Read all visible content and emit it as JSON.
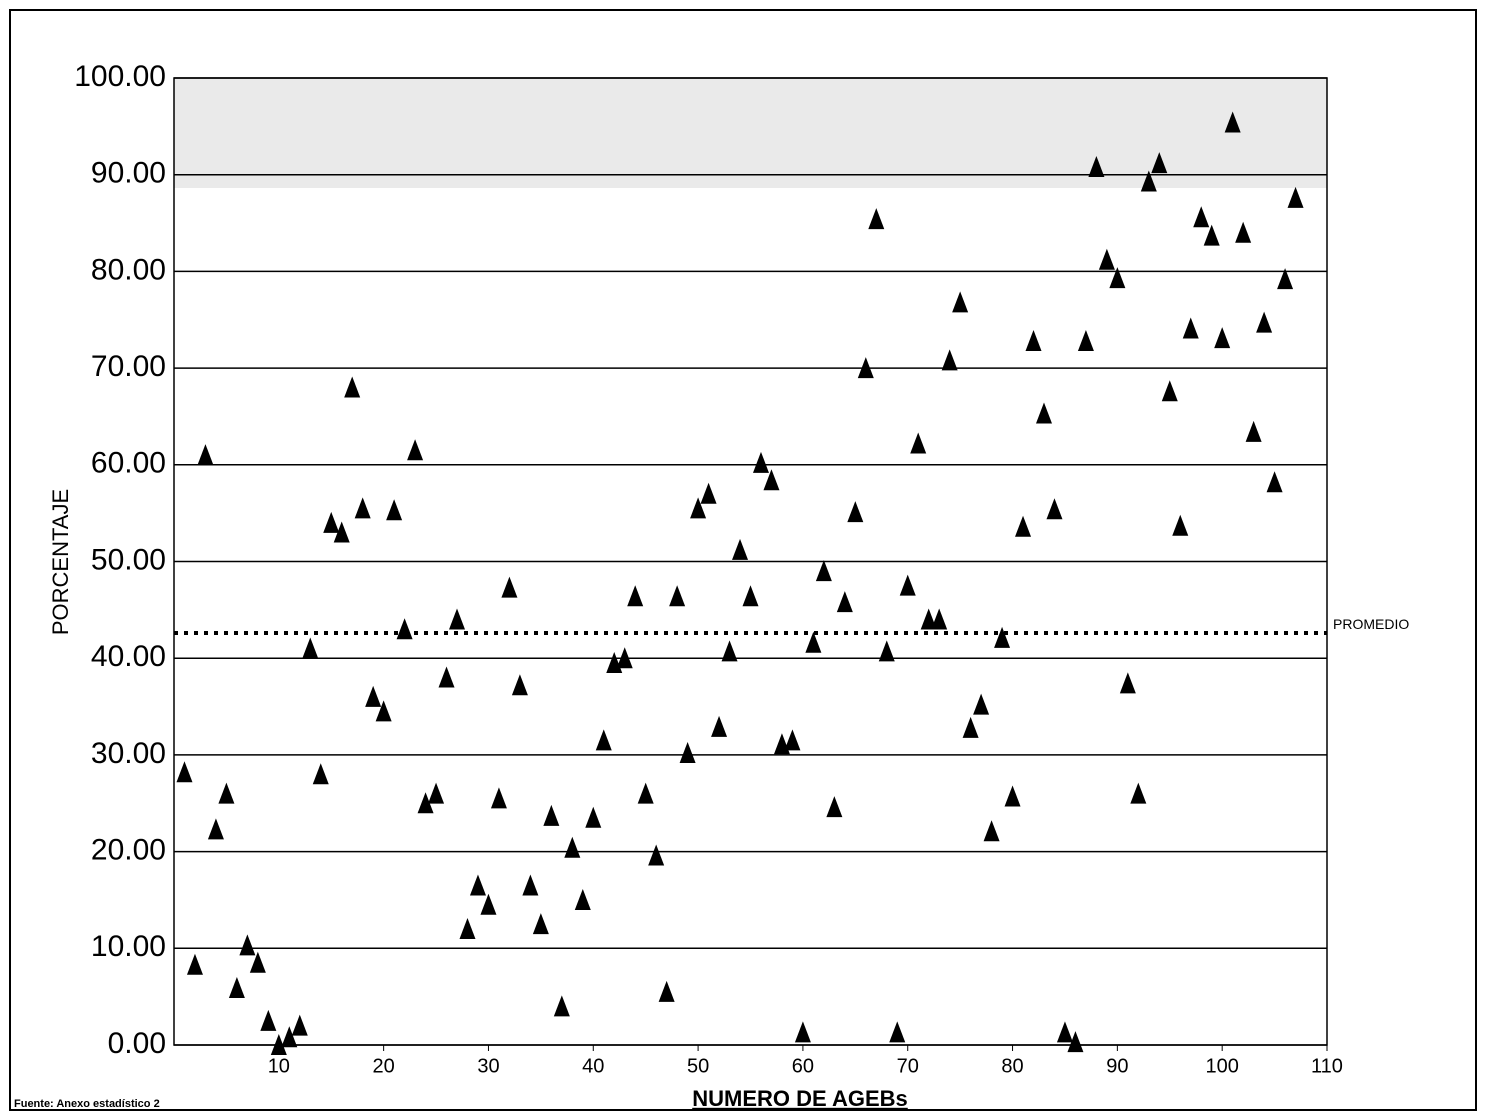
{
  "chart_data": {
    "type": "scatter",
    "x_label": "NUMERO DE AGEBs",
    "y_label": "PORCENTAJE",
    "source": "Fuente: Anexo estadístico 2",
    "marker": "triangle",
    "color": "#000000",
    "x": [
      1,
      2,
      3,
      4,
      5,
      6,
      7,
      8,
      9,
      10,
      11,
      12,
      13,
      14,
      15,
      16,
      17,
      18,
      19,
      20,
      21,
      22,
      23,
      24,
      25,
      26,
      27,
      28,
      29,
      30,
      31,
      32,
      33,
      34,
      35,
      36,
      37,
      38,
      39,
      40,
      41,
      42,
      43,
      44,
      45,
      46,
      47,
      48,
      49,
      50,
      51,
      52,
      53,
      54,
      55,
      56,
      57,
      58,
      59,
      60,
      61,
      62,
      63,
      64,
      65,
      66,
      67,
      68,
      69,
      70,
      71,
      72,
      73,
      74,
      75,
      76,
      77,
      78,
      79,
      80,
      81,
      82,
      83,
      84,
      85,
      86,
      87,
      88,
      89,
      90,
      91,
      92,
      93,
      94,
      95,
      96,
      97,
      98,
      99,
      100,
      101,
      102,
      103,
      104,
      105,
      106,
      107
    ],
    "values": [
      28.2,
      8.3,
      61,
      22.3,
      26,
      5.9,
      10.3,
      8.5,
      2.5,
      0,
      0.8,
      2,
      41,
      28,
      54,
      53,
      68,
      55.5,
      36,
      34.5,
      55.3,
      43,
      61.5,
      25,
      26,
      38,
      44,
      12,
      16.5,
      14.5,
      25.5,
      47.3,
      37.2,
      16.5,
      12.5,
      23.7,
      4,
      20.4,
      15,
      23.5,
      31.5,
      39.5,
      40,
      46.4,
      26,
      19.6,
      5.5,
      46.4,
      30.2,
      55.5,
      57,
      32.9,
      40.7,
      51.2,
      46.4,
      60.2,
      58.4,
      31.1,
      31.5,
      1.3,
      41.6,
      49,
      24.6,
      45.8,
      55.1,
      70,
      85.4,
      40.7,
      1.3,
      47.5,
      62.2,
      44,
      44,
      70.8,
      76.8,
      32.8,
      35.2,
      22.1,
      42.1,
      25.7,
      53.6,
      72.8,
      65.3,
      55.4,
      1.3,
      0.3,
      72.8,
      90.8,
      81.2,
      79.3,
      37.4,
      26,
      89.3,
      91.2,
      67.6,
      53.7,
      74.1,
      85.6,
      83.7,
      73.1,
      95.4,
      84,
      63.4,
      74.7,
      58.2,
      79.2,
      87.6
    ],
    "reference_line": {
      "value": 42.6,
      "label": "PROMEDIO"
    },
    "xlim": [
      0,
      110
    ],
    "xticks": [
      10,
      20,
      30,
      40,
      50,
      60,
      70,
      80,
      90,
      100,
      110
    ],
    "ylim": [
      0,
      100
    ],
    "yticks": [
      {
        "value": 0,
        "label": "0.00"
      },
      {
        "value": 10,
        "label": "10.00"
      },
      {
        "value": 20,
        "label": "20.00"
      },
      {
        "value": 30,
        "label": "30.00"
      },
      {
        "value": 40,
        "label": "40.00"
      },
      {
        "value": 50,
        "label": "50.00"
      },
      {
        "value": 60,
        "label": "60.00"
      },
      {
        "value": 70,
        "label": "70.00"
      },
      {
        "value": 80,
        "label": "80.00"
      },
      {
        "value": 90,
        "label": "90.00"
      },
      {
        "value": 100,
        "label": "100.00"
      }
    ],
    "grid": true
  }
}
